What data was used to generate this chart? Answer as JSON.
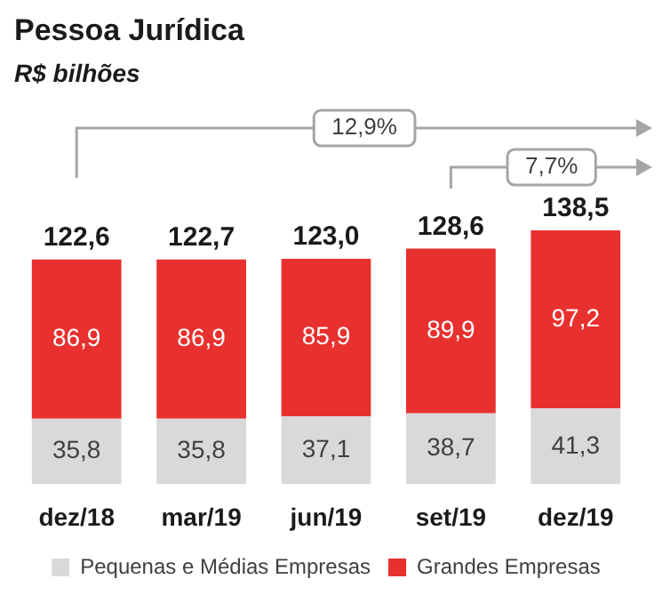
{
  "chart_data": {
    "type": "bar",
    "title": "Pessoa Jurídica",
    "subtitle": "R$ bilhões",
    "stacked": true,
    "legend": "bottom",
    "categories": [
      "dez/18",
      "mar/19",
      "jun/19",
      "set/19",
      "dez/19"
    ],
    "series": [
      {
        "name": "Pequenas e Médias Empresas",
        "color": "#d9d9d9",
        "values": [
          35.8,
          35.8,
          37.1,
          38.7,
          41.3
        ],
        "value_labels": [
          "35,8",
          "35,8",
          "37,1",
          "38,7",
          "41,3"
        ]
      },
      {
        "name": "Grandes Empresas",
        "color": "#e8312f",
        "values": [
          86.9,
          86.9,
          85.9,
          89.9,
          97.2
        ],
        "value_labels": [
          "86,9",
          "86,9",
          "85,9",
          "89,9",
          "97,2"
        ]
      }
    ],
    "totals": [
      "122,6",
      "122,7",
      "123,0",
      "128,6",
      "138,5"
    ],
    "annotations": [
      "12,9%",
      "7,7%"
    ]
  }
}
